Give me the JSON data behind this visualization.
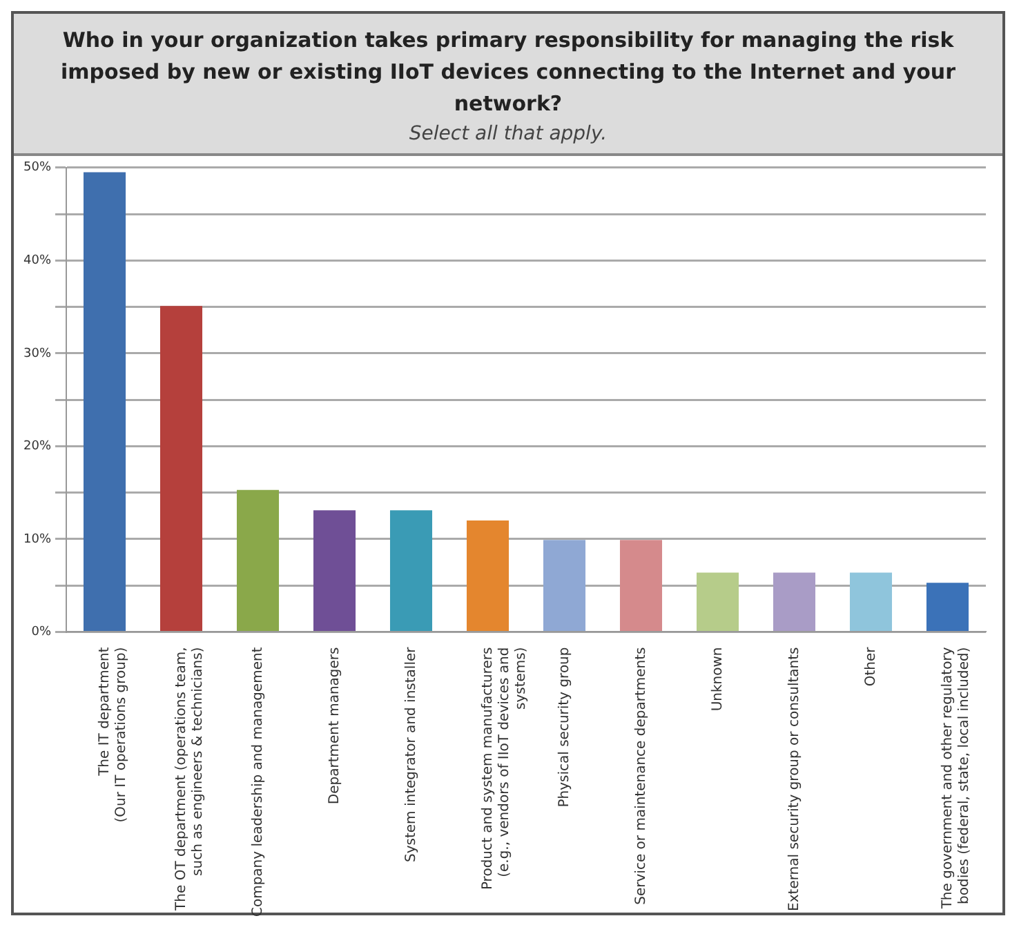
{
  "chart_data": {
    "type": "bar",
    "title": "Who in your organization takes primary responsibility for managing the risk imposed by new or existing IIoT devices connecting to the Internet and your network?",
    "subtitle": "Select all that apply.",
    "categories": [
      "The IT department\n(Our IT operations group)",
      "The OT department (operations team,\nsuch as engineers & technicians)",
      "Company leadership and management",
      "Department managers",
      "System integrator and installer",
      "Product and system manufacturers\n(e.g., vendors of IIoT devices and\nsystems)",
      "Physical security group",
      "Service or maintenance departments",
      "Unknown",
      "External security group or consultants",
      "Other",
      "The government and other regulatory\nbodies (federal, state, local included)"
    ],
    "values": [
      49.5,
      35.1,
      15.3,
      13.1,
      13.1,
      12.0,
      9.9,
      9.9,
      6.4,
      6.4,
      6.4,
      5.3
    ],
    "colors": [
      "#3f6fae",
      "#b5403c",
      "#8aa84a",
      "#6f4f96",
      "#3a9bb5",
      "#e4862e",
      "#8fa8d4",
      "#d58a8c",
      "#b6cc8a",
      "#a99cc6",
      "#8fc5dc",
      "#3b72b8"
    ],
    "ylim": [
      0,
      50
    ],
    "yticks": [
      {
        "value": 0,
        "label": "0%"
      },
      {
        "value": 5,
        "label": null
      },
      {
        "value": 10,
        "label": "10%"
      },
      {
        "value": 15,
        "label": null
      },
      {
        "value": 20,
        "label": "20%"
      },
      {
        "value": 25,
        "label": null
      },
      {
        "value": 30,
        "label": "30%"
      },
      {
        "value": 35,
        "label": null
      },
      {
        "value": 40,
        "label": "40%"
      },
      {
        "value": 45,
        "label": null
      },
      {
        "value": 50,
        "label": "50%"
      }
    ],
    "grid": "y"
  }
}
